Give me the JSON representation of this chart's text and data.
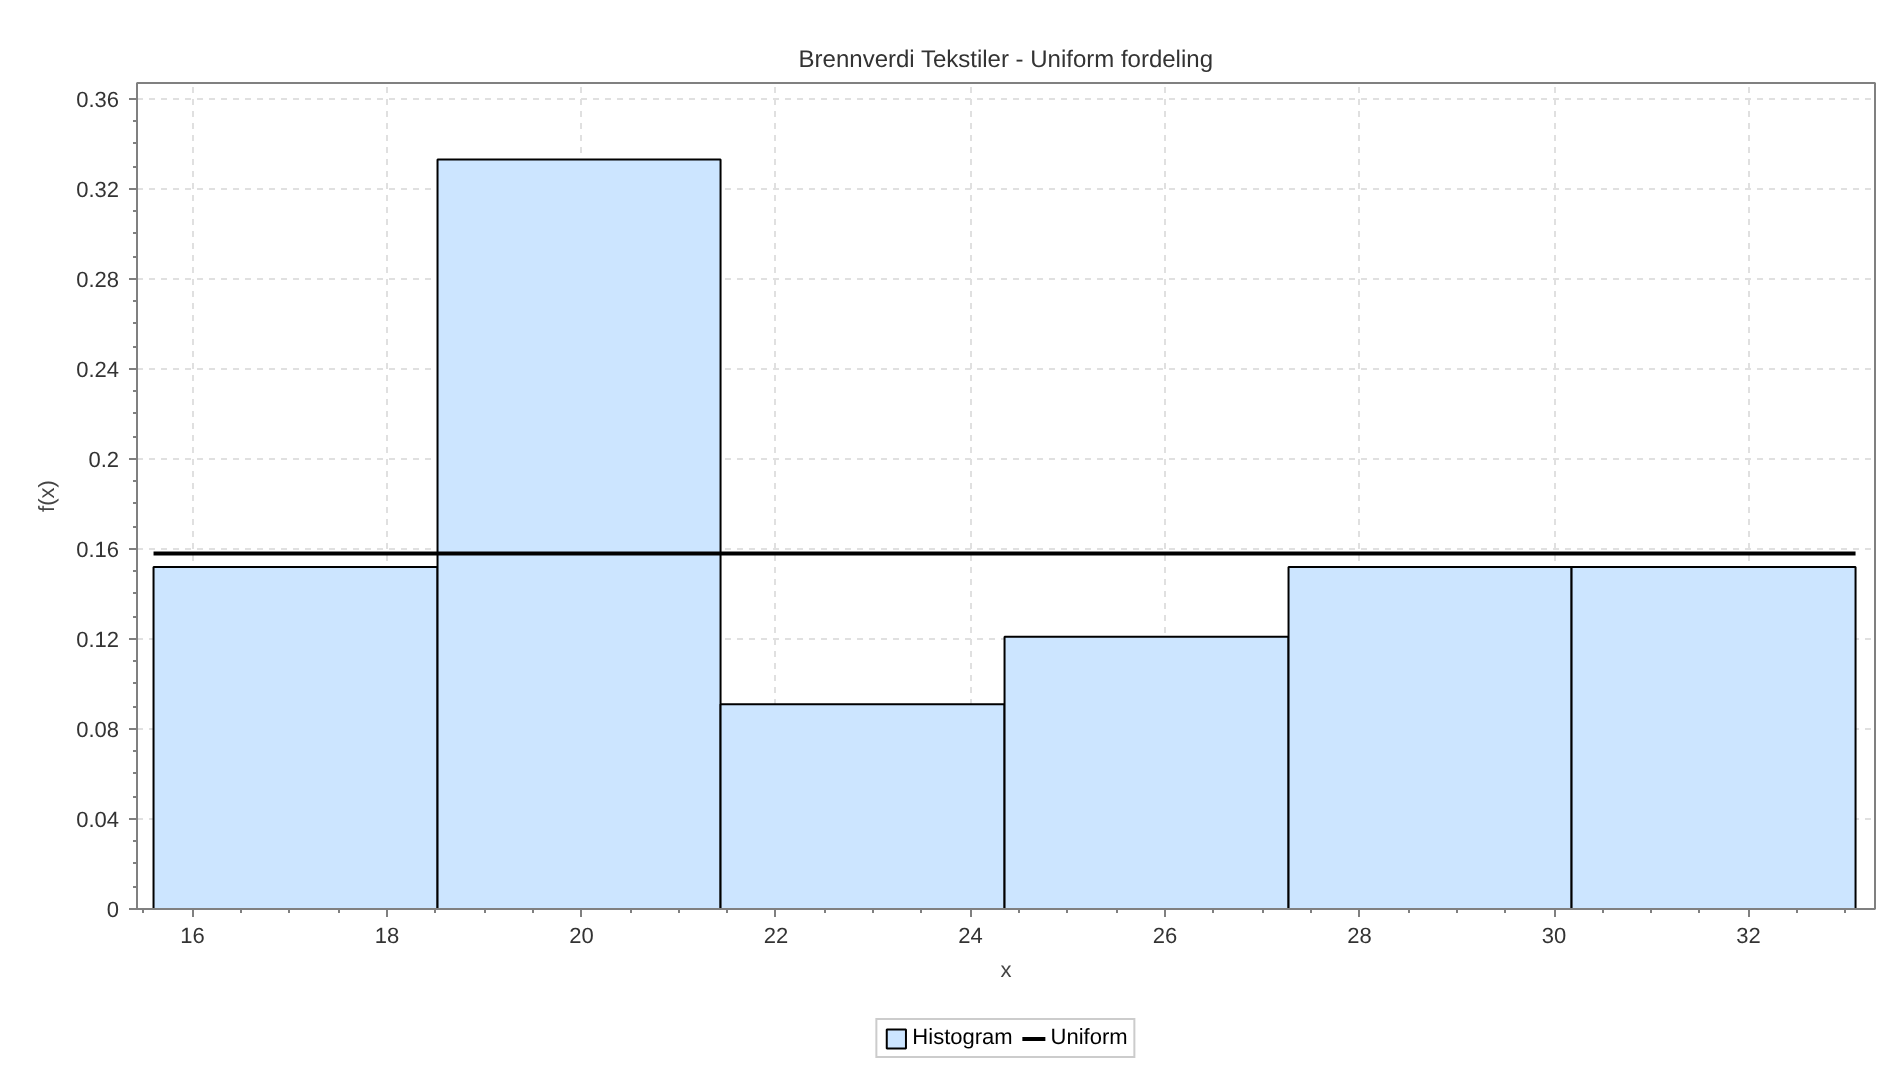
{
  "chart_data": {
    "type": "histogram",
    "title": "Brennverdi Tekstiler - Uniform fordeling",
    "xlabel": "x",
    "ylabel": "f(x)",
    "bins": [
      15.6,
      18.52,
      21.43,
      24.35,
      27.27,
      30.18,
      33.1
    ],
    "series": [
      {
        "name": "Histogram",
        "color": "#cce5ff",
        "values": [
          0.152,
          0.333,
          0.091,
          0.121,
          0.152,
          0.152
        ]
      },
      {
        "name": "Uniform",
        "type": "line",
        "color": "#000000",
        "x": [
          15.6,
          33.1
        ],
        "values": [
          0.158,
          0.158
        ],
        "marker": "none"
      }
    ],
    "xlim": [
      15.43,
      33.3
    ],
    "xticks": [
      16,
      18,
      20,
      22,
      24,
      26,
      28,
      30,
      32
    ],
    "ylim": [
      0,
      0.367
    ],
    "yticks": [
      0,
      0.04,
      0.08,
      0.12,
      0.16,
      0.2,
      0.24,
      0.28,
      0.32,
      0.36
    ],
    "grid": true,
    "legend": "bottom",
    "line_style": "solid"
  }
}
